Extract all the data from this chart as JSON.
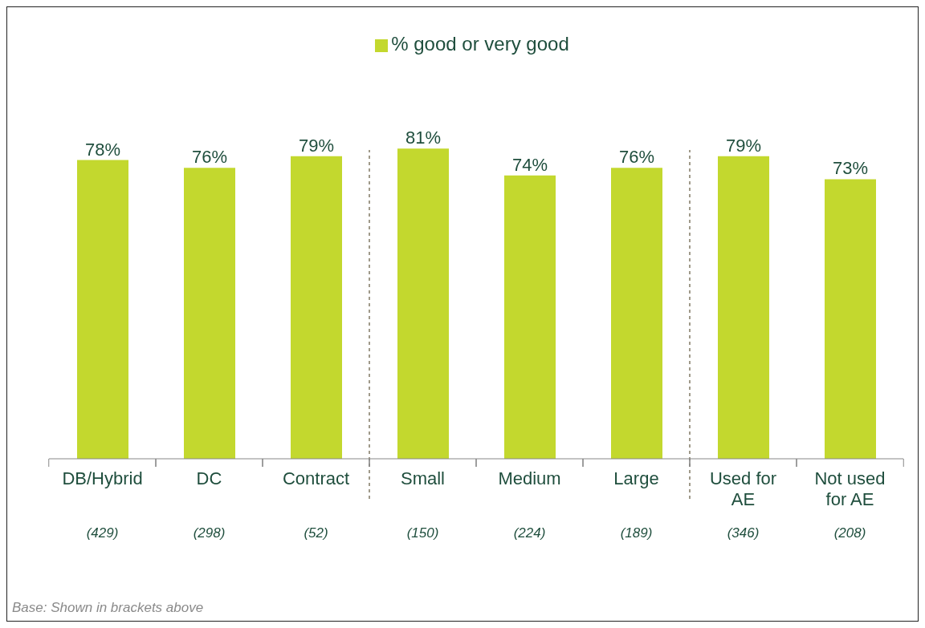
{
  "chart_data": {
    "type": "bar",
    "categories": [
      "DB/Hybrid",
      "DC",
      "Contract",
      "Small",
      "Medium",
      "Large",
      "Used for AE",
      "Not used for AE"
    ],
    "series": [
      {
        "name": "% good or very good",
        "color": "#c3d82e",
        "values": [
          78,
          76,
          79,
          81,
          74,
          76,
          79,
          73
        ],
        "value_labels": [
          "78%",
          "76%",
          "79%",
          "81%",
          "74%",
          "76%",
          "79%",
          "73%"
        ]
      }
    ],
    "tick_labels": "x",
    "legend": "top",
    "annotations": [
      "(429)",
      "(298)",
      "(52)",
      "(150)",
      "(224)",
      "(189)",
      "(346)",
      "(208)",
      "Base: Shown in brackets above"
    ]
  }
}
